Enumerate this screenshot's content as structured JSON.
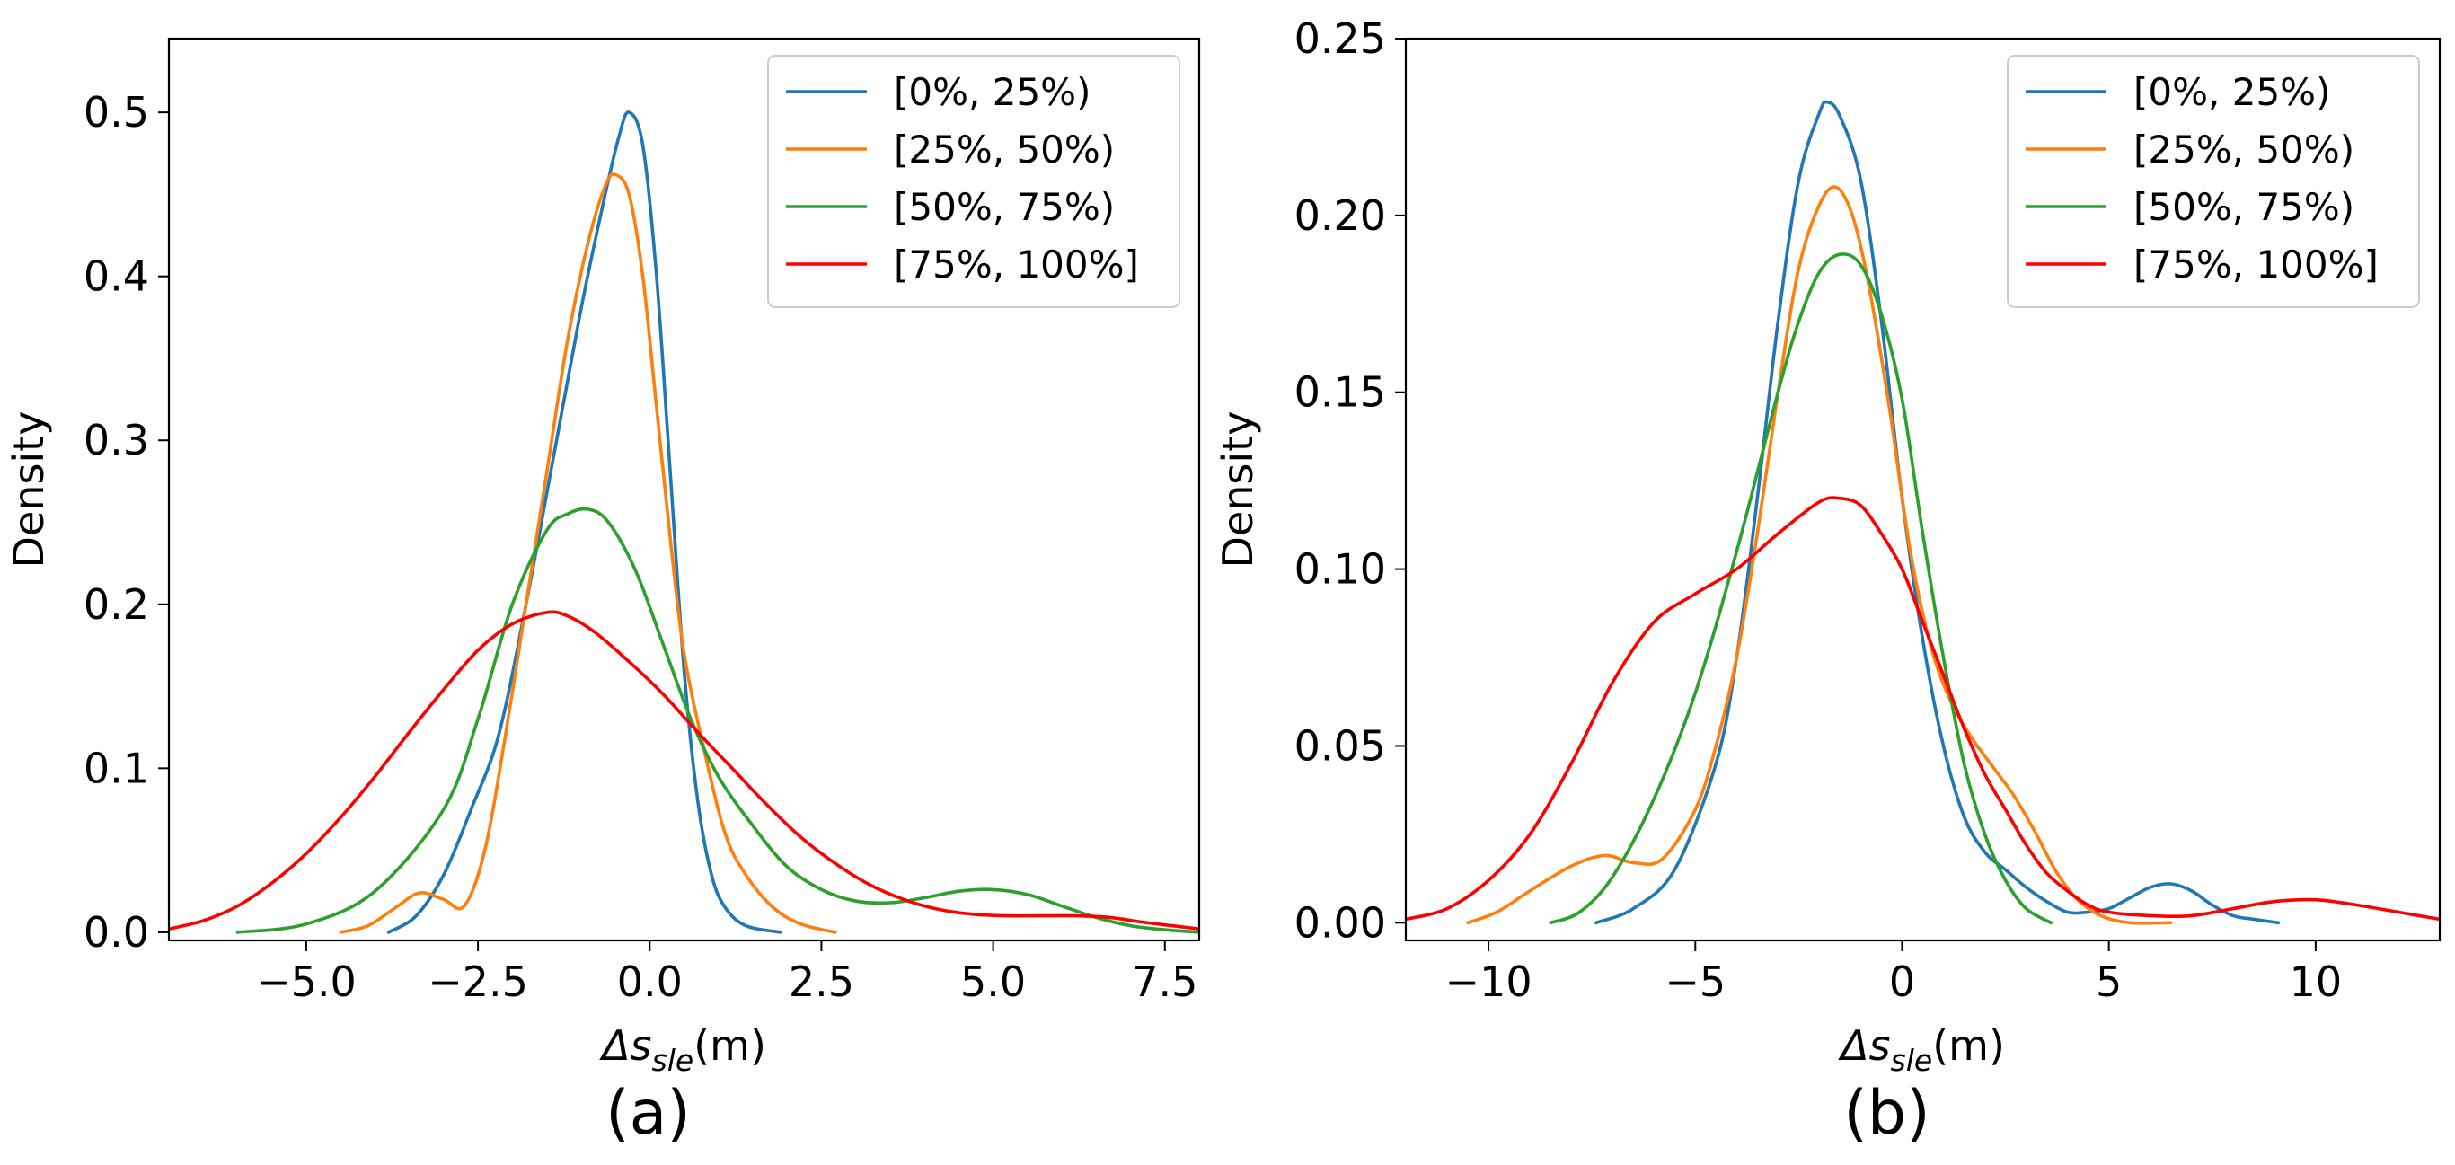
{
  "figure": {
    "panels": [
      "a",
      "b"
    ]
  },
  "chart_data": [
    {
      "type": "line",
      "panel_label": "(a)",
      "ylabel": "Density",
      "xlabel_prefix": "Δs",
      "xlabel_sub": "sle",
      "xlabel_suffix": "(m)",
      "xlim": [
        -7.0,
        8.0
      ],
      "ylim": [
        -0.005,
        0.545
      ],
      "xticks": [
        -5.0,
        -2.5,
        0.0,
        2.5,
        5.0,
        7.5
      ],
      "xtick_labels": [
        "−5.0",
        "−2.5",
        "0.0",
        "2.5",
        "5.0",
        "7.5"
      ],
      "yticks": [
        0.0,
        0.1,
        0.2,
        0.3,
        0.4,
        0.5
      ],
      "ytick_labels": [
        "0.0",
        "0.1",
        "0.2",
        "0.3",
        "0.4",
        "0.5"
      ],
      "grid": false,
      "legend_position": "upper-right",
      "series": [
        {
          "name": "[0%, 25%)",
          "color": "#1f77b4",
          "points": [
            [
              -3.8,
              0.0
            ],
            [
              -3.4,
              0.01
            ],
            [
              -3.0,
              0.035
            ],
            [
              -2.6,
              0.075
            ],
            [
              -2.2,
              0.12
            ],
            [
              -1.8,
              0.2
            ],
            [
              -1.4,
              0.29
            ],
            [
              -1.0,
              0.38
            ],
            [
              -0.7,
              0.44
            ],
            [
              -0.45,
              0.485
            ],
            [
              -0.3,
              0.5
            ],
            [
              -0.1,
              0.48
            ],
            [
              0.1,
              0.4
            ],
            [
              0.3,
              0.28
            ],
            [
              0.5,
              0.16
            ],
            [
              0.7,
              0.08
            ],
            [
              0.9,
              0.035
            ],
            [
              1.1,
              0.015
            ],
            [
              1.4,
              0.004
            ],
            [
              1.9,
              0.0
            ]
          ]
        },
        {
          "name": "[25%, 50%)",
          "color": "#ff7f0e",
          "points": [
            [
              -4.5,
              0.0
            ],
            [
              -4.1,
              0.004
            ],
            [
              -3.7,
              0.015
            ],
            [
              -3.35,
              0.024
            ],
            [
              -3.0,
              0.02
            ],
            [
              -2.7,
              0.016
            ],
            [
              -2.4,
              0.05
            ],
            [
              -2.1,
              0.12
            ],
            [
              -1.8,
              0.2
            ],
            [
              -1.5,
              0.28
            ],
            [
              -1.2,
              0.36
            ],
            [
              -0.9,
              0.42
            ],
            [
              -0.65,
              0.455
            ],
            [
              -0.5,
              0.462
            ],
            [
              -0.3,
              0.45
            ],
            [
              -0.1,
              0.4
            ],
            [
              0.1,
              0.32
            ],
            [
              0.3,
              0.24
            ],
            [
              0.5,
              0.17
            ],
            [
              0.8,
              0.11
            ],
            [
              1.1,
              0.06
            ],
            [
              1.4,
              0.035
            ],
            [
              1.8,
              0.015
            ],
            [
              2.2,
              0.005
            ],
            [
              2.7,
              0.0
            ]
          ]
        },
        {
          "name": "[50%, 75%)",
          "color": "#2ca02c",
          "points": [
            [
              -6.0,
              0.0
            ],
            [
              -5.0,
              0.005
            ],
            [
              -4.0,
              0.025
            ],
            [
              -3.0,
              0.075
            ],
            [
              -2.5,
              0.13
            ],
            [
              -2.0,
              0.2
            ],
            [
              -1.5,
              0.245
            ],
            [
              -1.2,
              0.255
            ],
            [
              -0.9,
              0.258
            ],
            [
              -0.6,
              0.25
            ],
            [
              -0.2,
              0.22
            ],
            [
              0.2,
              0.175
            ],
            [
              0.6,
              0.13
            ],
            [
              1.0,
              0.095
            ],
            [
              1.5,
              0.065
            ],
            [
              2.0,
              0.04
            ],
            [
              2.5,
              0.026
            ],
            [
              3.0,
              0.019
            ],
            [
              3.5,
              0.018
            ],
            [
              4.0,
              0.021
            ],
            [
              4.5,
              0.025
            ],
            [
              5.0,
              0.026
            ],
            [
              5.5,
              0.023
            ],
            [
              6.0,
              0.016
            ],
            [
              6.5,
              0.009
            ],
            [
              7.0,
              0.004
            ],
            [
              7.5,
              0.0015
            ],
            [
              8.0,
              0.0
            ]
          ]
        },
        {
          "name": "[75%, 100%]",
          "color": "#ff0000",
          "points": [
            [
              -7.0,
              0.002
            ],
            [
              -6.5,
              0.007
            ],
            [
              -6.0,
              0.016
            ],
            [
              -5.5,
              0.03
            ],
            [
              -5.0,
              0.048
            ],
            [
              -4.5,
              0.07
            ],
            [
              -4.0,
              0.095
            ],
            [
              -3.5,
              0.122
            ],
            [
              -3.0,
              0.148
            ],
            [
              -2.5,
              0.172
            ],
            [
              -2.0,
              0.188
            ],
            [
              -1.5,
              0.195
            ],
            [
              -1.2,
              0.193
            ],
            [
              -0.8,
              0.183
            ],
            [
              -0.3,
              0.165
            ],
            [
              0.2,
              0.145
            ],
            [
              0.7,
              0.122
            ],
            [
              1.2,
              0.1
            ],
            [
              1.7,
              0.078
            ],
            [
              2.2,
              0.058
            ],
            [
              2.7,
              0.042
            ],
            [
              3.2,
              0.029
            ],
            [
              3.7,
              0.02
            ],
            [
              4.2,
              0.014
            ],
            [
              4.7,
              0.011
            ],
            [
              5.2,
              0.01
            ],
            [
              5.7,
              0.01
            ],
            [
              6.2,
              0.01
            ],
            [
              6.7,
              0.009
            ],
            [
              7.2,
              0.006
            ],
            [
              7.6,
              0.004
            ],
            [
              8.0,
              0.002
            ]
          ]
        }
      ]
    },
    {
      "type": "line",
      "panel_label": "(b)",
      "ylabel": "Density",
      "xlabel_prefix": "Δs",
      "xlabel_sub": "sle",
      "xlabel_suffix": "(m)",
      "xlim": [
        -12.0,
        13.0
      ],
      "ylim": [
        -0.005,
        0.25
      ],
      "xticks": [
        -10,
        -5,
        0,
        5,
        10
      ],
      "xtick_labels": [
        "−10",
        "−5",
        "0",
        "5",
        "10"
      ],
      "yticks": [
        0.0,
        0.05,
        0.1,
        0.15,
        0.2,
        0.25
      ],
      "ytick_labels": [
        "0.00",
        "0.05",
        "0.10",
        "0.15",
        "0.20",
        "0.25"
      ],
      "grid": false,
      "legend_position": "upper-right",
      "series": [
        {
          "name": "[0%, 25%)",
          "color": "#1f77b4",
          "points": [
            [
              -7.4,
              0.0
            ],
            [
              -6.5,
              0.004
            ],
            [
              -5.5,
              0.015
            ],
            [
              -4.5,
              0.045
            ],
            [
              -4.0,
              0.075
            ],
            [
              -3.5,
              0.12
            ],
            [
              -3.0,
              0.17
            ],
            [
              -2.5,
              0.21
            ],
            [
              -2.0,
              0.229
            ],
            [
              -1.8,
              0.232
            ],
            [
              -1.5,
              0.228
            ],
            [
              -1.0,
              0.21
            ],
            [
              -0.5,
              0.17
            ],
            [
              0.0,
              0.12
            ],
            [
              0.5,
              0.08
            ],
            [
              1.0,
              0.05
            ],
            [
              1.5,
              0.03
            ],
            [
              2.0,
              0.02
            ],
            [
              2.5,
              0.015
            ],
            [
              3.0,
              0.01
            ],
            [
              3.5,
              0.006
            ],
            [
              4.0,
              0.003
            ],
            [
              4.5,
              0.003
            ],
            [
              5.0,
              0.004
            ],
            [
              5.5,
              0.007
            ],
            [
              6.0,
              0.01
            ],
            [
              6.5,
              0.011
            ],
            [
              7.0,
              0.009
            ],
            [
              7.5,
              0.005
            ],
            [
              8.0,
              0.002
            ],
            [
              8.5,
              0.001
            ],
            [
              9.1,
              0.0
            ]
          ]
        },
        {
          "name": "[25%, 50%)",
          "color": "#ff7f0e",
          "points": [
            [
              -10.5,
              0.0
            ],
            [
              -9.8,
              0.003
            ],
            [
              -9.0,
              0.009
            ],
            [
              -8.0,
              0.016
            ],
            [
              -7.2,
              0.019
            ],
            [
              -6.5,
              0.017
            ],
            [
              -5.8,
              0.018
            ],
            [
              -5.0,
              0.032
            ],
            [
              -4.5,
              0.05
            ],
            [
              -4.0,
              0.075
            ],
            [
              -3.5,
              0.11
            ],
            [
              -3.0,
              0.15
            ],
            [
              -2.5,
              0.185
            ],
            [
              -2.0,
              0.203
            ],
            [
              -1.6,
              0.208
            ],
            [
              -1.2,
              0.2
            ],
            [
              -0.8,
              0.18
            ],
            [
              -0.3,
              0.145
            ],
            [
              0.2,
              0.105
            ],
            [
              0.7,
              0.078
            ],
            [
              1.2,
              0.062
            ],
            [
              1.7,
              0.052
            ],
            [
              2.2,
              0.044
            ],
            [
              2.7,
              0.036
            ],
            [
              3.2,
              0.026
            ],
            [
              3.7,
              0.015
            ],
            [
              4.2,
              0.007
            ],
            [
              4.8,
              0.002
            ],
            [
              5.5,
              0.0
            ],
            [
              6.5,
              0.0
            ]
          ]
        },
        {
          "name": "[50%, 75%)",
          "color": "#2ca02c",
          "points": [
            [
              -8.5,
              0.0
            ],
            [
              -7.8,
              0.003
            ],
            [
              -7.0,
              0.013
            ],
            [
              -6.0,
              0.035
            ],
            [
              -5.0,
              0.065
            ],
            [
              -4.0,
              0.105
            ],
            [
              -3.0,
              0.15
            ],
            [
              -2.5,
              0.17
            ],
            [
              -2.0,
              0.184
            ],
            [
              -1.5,
              0.189
            ],
            [
              -1.0,
              0.186
            ],
            [
              -0.5,
              0.172
            ],
            [
              0.0,
              0.148
            ],
            [
              0.5,
              0.11
            ],
            [
              1.0,
              0.075
            ],
            [
              1.5,
              0.045
            ],
            [
              2.0,
              0.025
            ],
            [
              2.5,
              0.012
            ],
            [
              3.0,
              0.004
            ],
            [
              3.6,
              0.0
            ]
          ]
        },
        {
          "name": "[75%, 100%]",
          "color": "#ff0000",
          "points": [
            [
              -12.0,
              0.001
            ],
            [
              -11.0,
              0.004
            ],
            [
              -10.0,
              0.012
            ],
            [
              -9.0,
              0.025
            ],
            [
              -8.0,
              0.045
            ],
            [
              -7.0,
              0.068
            ],
            [
              -6.0,
              0.085
            ],
            [
              -5.0,
              0.093
            ],
            [
              -4.0,
              0.1
            ],
            [
              -3.0,
              0.11
            ],
            [
              -2.0,
              0.119
            ],
            [
              -1.5,
              0.12
            ],
            [
              -1.0,
              0.118
            ],
            [
              -0.5,
              0.11
            ],
            [
              0.0,
              0.1
            ],
            [
              0.5,
              0.085
            ],
            [
              1.0,
              0.07
            ],
            [
              1.5,
              0.055
            ],
            [
              2.0,
              0.042
            ],
            [
              2.5,
              0.032
            ],
            [
              3.0,
              0.022
            ],
            [
              3.5,
              0.014
            ],
            [
              4.0,
              0.009
            ],
            [
              4.5,
              0.005
            ],
            [
              5.0,
              0.003
            ],
            [
              6.0,
              0.002
            ],
            [
              7.0,
              0.002
            ],
            [
              8.0,
              0.004
            ],
            [
              9.0,
              0.006
            ],
            [
              10.0,
              0.0065
            ],
            [
              11.0,
              0.005
            ],
            [
              12.0,
              0.003
            ],
            [
              13.0,
              0.001
            ]
          ]
        }
      ]
    }
  ]
}
